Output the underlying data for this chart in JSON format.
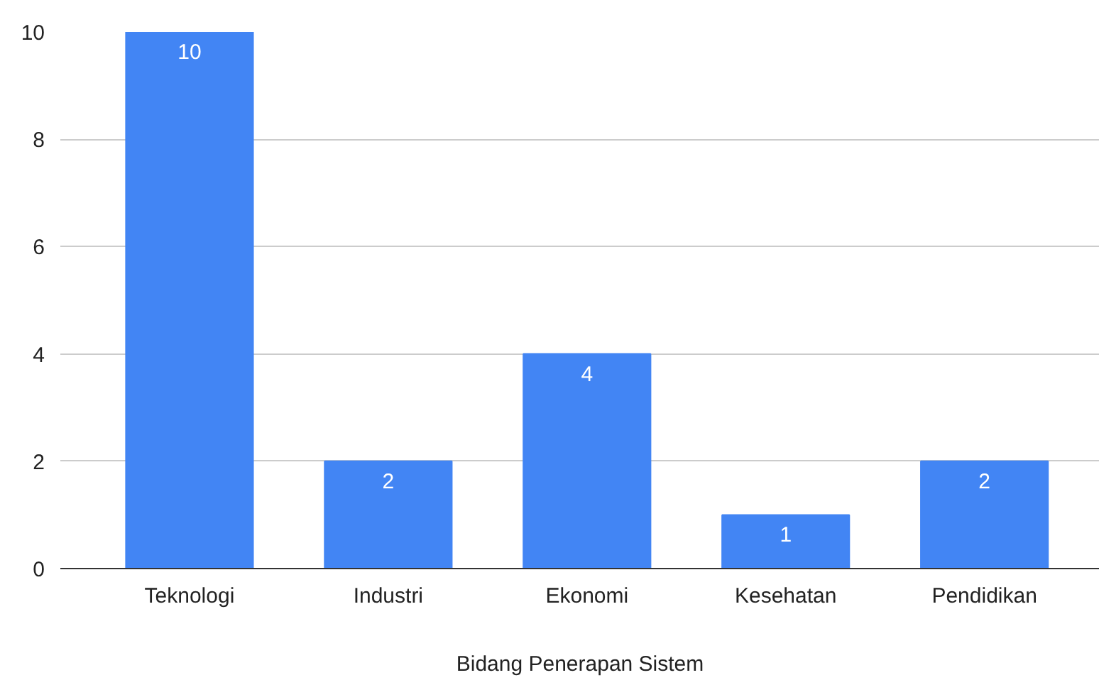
{
  "chart_data": {
    "type": "bar",
    "xlabel": "Bidang Penerapan Sistem",
    "categories": [
      "Teknologi",
      "Industri",
      "Ekonomi",
      "Kesehatan",
      "Pendidikan"
    ],
    "values": [
      10,
      2,
      4,
      1,
      2
    ],
    "color": "#4285f4",
    "ylim": [
      0,
      10
    ],
    "yticks": [
      0,
      2,
      4,
      6,
      8,
      10
    ],
    "grid": "y",
    "data_labels": true
  }
}
